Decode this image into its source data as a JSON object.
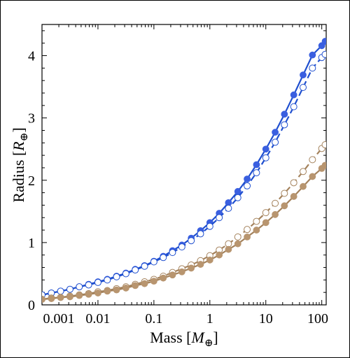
{
  "chart_data": {
    "type": "line",
    "xlabel": "Mass [M⊕]",
    "ylabel": "Radius [R⊕]",
    "xlabel_parts": {
      "main": "Mass [",
      "italic": "M",
      "sub": "⊕",
      "end": "]"
    },
    "ylabel_parts": {
      "main": "Radius [",
      "italic": "R",
      "sub": "⊕",
      "end": "]"
    },
    "x_scale": "log",
    "xlim": [
      0.001,
      120
    ],
    "ylim": [
      0,
      4.5
    ],
    "x_ticks": [
      {
        "value": 0.001,
        "label": "0.001"
      },
      {
        "value": 0.01,
        "label": "0.01"
      },
      {
        "value": 0.1,
        "label": "0.1"
      },
      {
        "value": 1,
        "label": "1"
      },
      {
        "value": 10,
        "label": "10"
      },
      {
        "value": 100,
        "label": "100"
      }
    ],
    "y_ticks": [
      {
        "value": 0,
        "label": "0"
      },
      {
        "value": 1,
        "label": "1"
      },
      {
        "value": 2,
        "label": "2"
      },
      {
        "value": 3,
        "label": "3"
      },
      {
        "value": 4,
        "label": "4"
      }
    ],
    "colors": {
      "blue": "#3a5fe0",
      "blue_line": "#1f4fcf",
      "tan": "#b8956f",
      "tan_line": "#a4825c"
    },
    "series": [
      {
        "color": "blue",
        "line": "solid",
        "marker": "filled",
        "x": [
          0.001,
          0.00147,
          0.00215,
          0.00316,
          0.00464,
          0.00681,
          0.01,
          0.0147,
          0.0215,
          0.0316,
          0.0464,
          0.0681,
          0.1,
          0.147,
          0.215,
          0.316,
          0.464,
          0.681,
          1,
          1.47,
          2.15,
          3.16,
          4.64,
          6.81,
          10,
          14.7,
          21.5,
          31.6,
          46.4,
          68.1,
          100,
          115
        ],
        "y": [
          0.16,
          0.19,
          0.22,
          0.25,
          0.29,
          0.33,
          0.37,
          0.41,
          0.46,
          0.51,
          0.57,
          0.63,
          0.7,
          0.78,
          0.87,
          0.96,
          1.07,
          1.19,
          1.32,
          1.47,
          1.64,
          1.82,
          2.02,
          2.25,
          2.5,
          2.77,
          3.06,
          3.37,
          3.69,
          4.01,
          4.16,
          4.23
        ]
      },
      {
        "color": "blue",
        "line": "dashed",
        "marker": "open",
        "x": [
          0.001,
          0.00147,
          0.00215,
          0.00316,
          0.00464,
          0.00681,
          0.01,
          0.0147,
          0.0215,
          0.0316,
          0.0464,
          0.0681,
          0.1,
          0.147,
          0.215,
          0.316,
          0.464,
          0.681,
          1,
          1.47,
          2.15,
          3.16,
          4.64,
          6.81,
          10,
          14.7,
          21.5,
          31.6,
          46.4,
          68.1,
          100,
          115
        ],
        "y": [
          0.16,
          0.19,
          0.22,
          0.25,
          0.29,
          0.32,
          0.36,
          0.4,
          0.45,
          0.5,
          0.56,
          0.62,
          0.69,
          0.76,
          0.84,
          0.93,
          1.03,
          1.14,
          1.26,
          1.4,
          1.55,
          1.72,
          1.91,
          2.12,
          2.36,
          2.61,
          2.89,
          3.18,
          3.49,
          3.8,
          3.97,
          4.02
        ]
      },
      {
        "color": "tan",
        "line": "dashed",
        "marker": "open",
        "x": [
          0.001,
          0.00147,
          0.00215,
          0.00316,
          0.00464,
          0.00681,
          0.01,
          0.0147,
          0.0215,
          0.0316,
          0.0464,
          0.0681,
          0.1,
          0.147,
          0.215,
          0.316,
          0.464,
          0.681,
          1,
          1.47,
          2.15,
          3.16,
          4.64,
          6.81,
          10,
          14.7,
          21.5,
          31.6,
          46.4,
          68.1,
          100,
          115
        ],
        "y": [
          0.09,
          0.11,
          0.12,
          0.14,
          0.16,
          0.18,
          0.21,
          0.23,
          0.26,
          0.29,
          0.33,
          0.37,
          0.41,
          0.46,
          0.52,
          0.58,
          0.64,
          0.71,
          0.79,
          0.88,
          0.98,
          1.09,
          1.21,
          1.34,
          1.48,
          1.63,
          1.79,
          1.96,
          2.14,
          2.33,
          2.51,
          2.57
        ]
      },
      {
        "color": "tan",
        "line": "solid",
        "marker": "filled",
        "x": [
          0.001,
          0.00147,
          0.00215,
          0.00316,
          0.00464,
          0.00681,
          0.01,
          0.0147,
          0.0215,
          0.0316,
          0.0464,
          0.0681,
          0.1,
          0.147,
          0.215,
          0.316,
          0.464,
          0.681,
          1,
          1.47,
          2.15,
          3.16,
          4.64,
          6.81,
          10,
          14.7,
          21.5,
          31.6,
          46.4,
          68.1,
          100,
          115
        ],
        "y": [
          0.09,
          0.1,
          0.12,
          0.13,
          0.15,
          0.17,
          0.19,
          0.22,
          0.24,
          0.27,
          0.31,
          0.34,
          0.38,
          0.43,
          0.48,
          0.53,
          0.59,
          0.65,
          0.72,
          0.8,
          0.89,
          0.98,
          1.09,
          1.2,
          1.32,
          1.45,
          1.59,
          1.74,
          1.9,
          2.06,
          2.19,
          2.24
        ]
      }
    ]
  }
}
